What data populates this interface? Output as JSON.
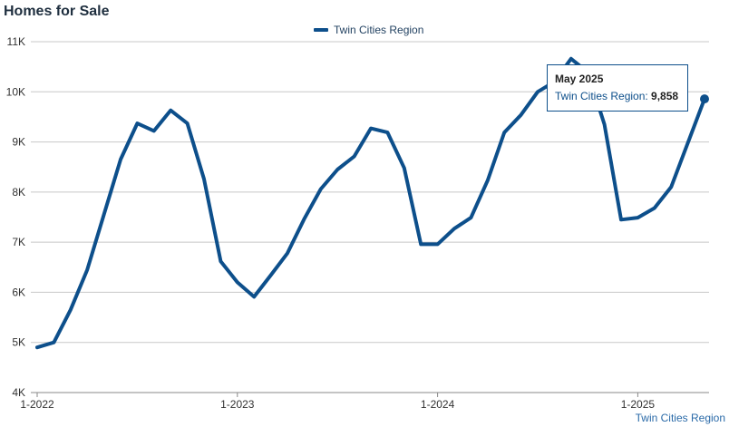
{
  "title": "Homes for Sale",
  "source_label": "Twin Cities Region",
  "tooltip": {
    "title": "May 2025",
    "series": "Twin Cities Region",
    "value": "9,858"
  },
  "chart_data": {
    "type": "line",
    "series": [
      {
        "name": "Twin Cities Region",
        "color": "#0d4f8b",
        "x": [
          "2022-01",
          "2022-02",
          "2022-03",
          "2022-04",
          "2022-05",
          "2022-06",
          "2022-07",
          "2022-08",
          "2022-09",
          "2022-10",
          "2022-11",
          "2022-12",
          "2023-01",
          "2023-02",
          "2023-03",
          "2023-04",
          "2023-05",
          "2023-06",
          "2023-07",
          "2023-08",
          "2023-09",
          "2023-10",
          "2023-11",
          "2023-12",
          "2024-01",
          "2024-02",
          "2024-03",
          "2024-04",
          "2024-05",
          "2024-06",
          "2024-07",
          "2024-08",
          "2024-09",
          "2024-10",
          "2024-11",
          "2024-12",
          "2025-01",
          "2025-02",
          "2025-03",
          "2025-04",
          "2025-05"
        ],
        "values": [
          4900,
          5000,
          5650,
          6450,
          7550,
          8650,
          9370,
          9220,
          9630,
          9370,
          8260,
          6620,
          6200,
          5910,
          6340,
          6780,
          7460,
          8060,
          8450,
          8710,
          9270,
          9190,
          8480,
          6960,
          6960,
          7270,
          7490,
          8230,
          9190,
          9540,
          10000,
          10200,
          10660,
          10390,
          9350,
          7450,
          7490,
          7680,
          8100,
          8980,
          9858
        ]
      }
    ],
    "x_ticks": [
      "1-2022",
      "1-2023",
      "1-2024",
      "1-2025"
    ],
    "y_ticks": [
      {
        "value": 4000,
        "label": "4K"
      },
      {
        "value": 5000,
        "label": "5K"
      },
      {
        "value": 6000,
        "label": "6K"
      },
      {
        "value": 7000,
        "label": "7K"
      },
      {
        "value": 8000,
        "label": "8K"
      },
      {
        "value": 9000,
        "label": "9K"
      },
      {
        "value": 10000,
        "label": "10K"
      },
      {
        "value": 11000,
        "label": "11K"
      }
    ],
    "ylim": [
      4000,
      11000
    ],
    "grid": true,
    "legend": "top-center",
    "highlighted_point": "2025-05"
  }
}
